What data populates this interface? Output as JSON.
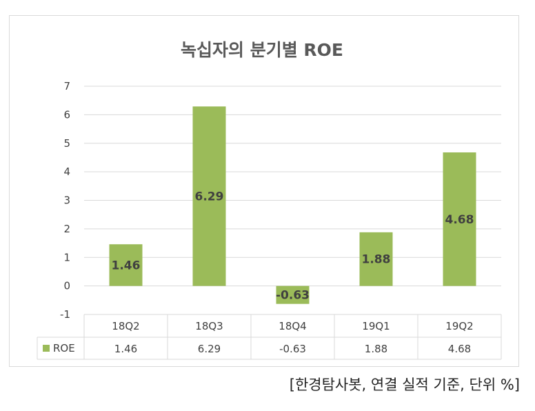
{
  "chart_data": {
    "type": "bar",
    "title": "녹십자의 분기별 ROE",
    "categories": [
      "18Q2",
      "18Q3",
      "18Q4",
      "19Q1",
      "19Q2"
    ],
    "series": [
      {
        "name": "ROE",
        "values": [
          1.46,
          6.29,
          -0.63,
          1.88,
          4.68
        ],
        "data_labels": [
          "1.46",
          "6.29",
          "-0.63",
          "1.88",
          "4.68"
        ],
        "color": "#9bbb59"
      }
    ],
    "table_values": [
      "1.46",
      "6.29",
      "-0.63",
      "1.88",
      "4.68"
    ],
    "yticks": [
      "7",
      "6",
      "5",
      "4",
      "3",
      "2",
      "1",
      "0",
      "-1"
    ],
    "ylim": [
      -1,
      7
    ],
    "grid": true,
    "legend": "data-table"
  },
  "footer": {
    "source_note": "[한경탐사봇, 연결 실적 기준, 단위 %]"
  }
}
